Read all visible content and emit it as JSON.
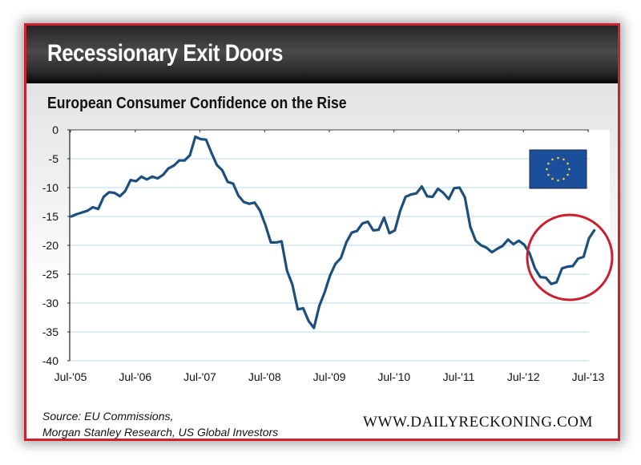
{
  "banner": {
    "title": "Recessionary Exit Doors"
  },
  "chart_data": {
    "type": "line",
    "title": "European Consumer Confidence on the Rise",
    "xlabel": "",
    "ylabel": "",
    "ylim": [
      -40,
      0
    ],
    "yticks": [
      0,
      -5,
      -10,
      -15,
      -20,
      -25,
      -30,
      -35,
      -40
    ],
    "ytick_labels": [
      "0",
      "-5",
      "-10",
      "-15",
      "-20",
      "-25",
      "-30",
      "-35",
      "-40"
    ],
    "xtick_labels": [
      "Jul-'05",
      "Jul-'06",
      "Jul-'07",
      "Jul-'08",
      "Jul-'09",
      "Jul-'10",
      "Jul-'11",
      "Jul-'12",
      "Jul-'13"
    ],
    "x_start": "Jul-2005",
    "x_frequency": "monthly",
    "grid": true,
    "series": [
      {
        "name": "EU Consumer Confidence",
        "color": "#1d4f7c",
        "values": [
          -15.0,
          -14.6,
          -14.3,
          -14.0,
          -13.4,
          -13.7,
          -11.6,
          -10.8,
          -10.9,
          -11.5,
          -10.6,
          -8.7,
          -8.9,
          -8.1,
          -8.6,
          -8.1,
          -8.4,
          -7.8,
          -6.7,
          -6.2,
          -5.3,
          -5.3,
          -4.4,
          -1.2,
          -1.6,
          -1.7,
          -4.0,
          -6.1,
          -7.0,
          -9.0,
          -9.3,
          -11.4,
          -12.5,
          -12.8,
          -12.6,
          -14.0,
          -16.5,
          -19.5,
          -19.5,
          -19.3,
          -24.4,
          -26.8,
          -31.1,
          -30.9,
          -33.1,
          -34.3,
          -30.5,
          -28.1,
          -25.2,
          -23.2,
          -22.2,
          -19.5,
          -17.8,
          -17.5,
          -16.2,
          -15.9,
          -17.4,
          -17.3,
          -15.2,
          -17.9,
          -17.4,
          -14.0,
          -11.6,
          -11.2,
          -11.0,
          -9.8,
          -11.5,
          -11.6,
          -10.2,
          -10.9,
          -12.0,
          -10.1,
          -10.0,
          -11.7,
          -16.8,
          -19.2,
          -20.0,
          -20.4,
          -21.2,
          -20.6,
          -20.1,
          -19.0,
          -19.8,
          -19.2,
          -19.9,
          -21.4,
          -24.0,
          -25.5,
          -25.6,
          -26.7,
          -26.4,
          -24.0,
          -23.7,
          -23.6,
          -22.3,
          -22.0,
          -18.8,
          -17.4
        ]
      }
    ],
    "annotations": [
      {
        "type": "circle",
        "label": "highlight recent rise",
        "color": "#c8202f",
        "x_range": [
          "Jun-2012",
          "Sep-2013"
        ],
        "y_range": [
          -29.5,
          -14.5
        ]
      },
      {
        "type": "image",
        "label": "EU flag",
        "color": "#1b4f9c",
        "star_color": "#f2d22b",
        "position": "top-right"
      }
    ]
  },
  "footer": {
    "source_line1": "Source: EU Commissions,",
    "source_line2": "Morgan Stanley Research, US Global Investors",
    "website": "WWW.DAILYRECKONING.COM"
  }
}
